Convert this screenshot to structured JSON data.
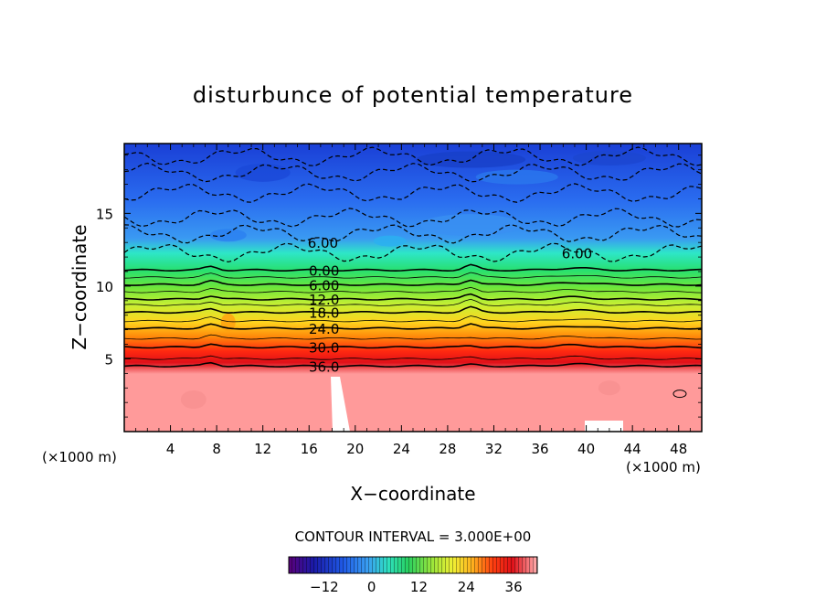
{
  "chart_data": {
    "type": "heatmap",
    "title": "disturbunce of potential temperature",
    "xlabel": "X−coordinate",
    "ylabel": "Z−coordinate",
    "x_unit_left": "(×1000 m)",
    "x_unit_right": "(×1000 m)",
    "xlim": [
      0,
      50
    ],
    "ylim": [
      0,
      19.8
    ],
    "x_ticks": [
      4,
      8,
      12,
      16,
      20,
      24,
      28,
      32,
      36,
      40,
      44,
      48
    ],
    "x_tick_labels": [
      "4",
      "8",
      "12",
      "16",
      "20",
      "24",
      "28",
      "32",
      "36",
      "40",
      "44",
      "48"
    ],
    "y_ticks": [
      5,
      10,
      15
    ],
    "y_tick_labels": [
      "5",
      "10",
      "15"
    ],
    "contour_interval_text": "CONTOUR INTERVAL = 3.000E+00",
    "contour_labels": [
      {
        "text": "6.00",
        "x": 17.2,
        "z": 13.0
      },
      {
        "text": "6.00",
        "x": 39.2,
        "z": 12.3
      },
      {
        "text": "0.00",
        "x": 17.3,
        "z": 11.1
      },
      {
        "text": "6.00",
        "x": 17.3,
        "z": 10.1
      },
      {
        "text": "12.0",
        "x": 17.3,
        "z": 9.1
      },
      {
        "text": "18.0",
        "x": 17.3,
        "z": 8.2
      },
      {
        "text": "24.0",
        "x": 17.3,
        "z": 7.1
      },
      {
        "text": "30.0",
        "x": 17.3,
        "z": 5.8
      },
      {
        "text": "36.0",
        "x": 17.3,
        "z": 4.5
      }
    ],
    "colorbar": {
      "min": -21,
      "max": 42,
      "tick_values": [
        -12,
        0,
        12,
        24,
        36
      ],
      "tick_labels": [
        "−12",
        "0",
        "12",
        "24",
        "36"
      ]
    }
  }
}
